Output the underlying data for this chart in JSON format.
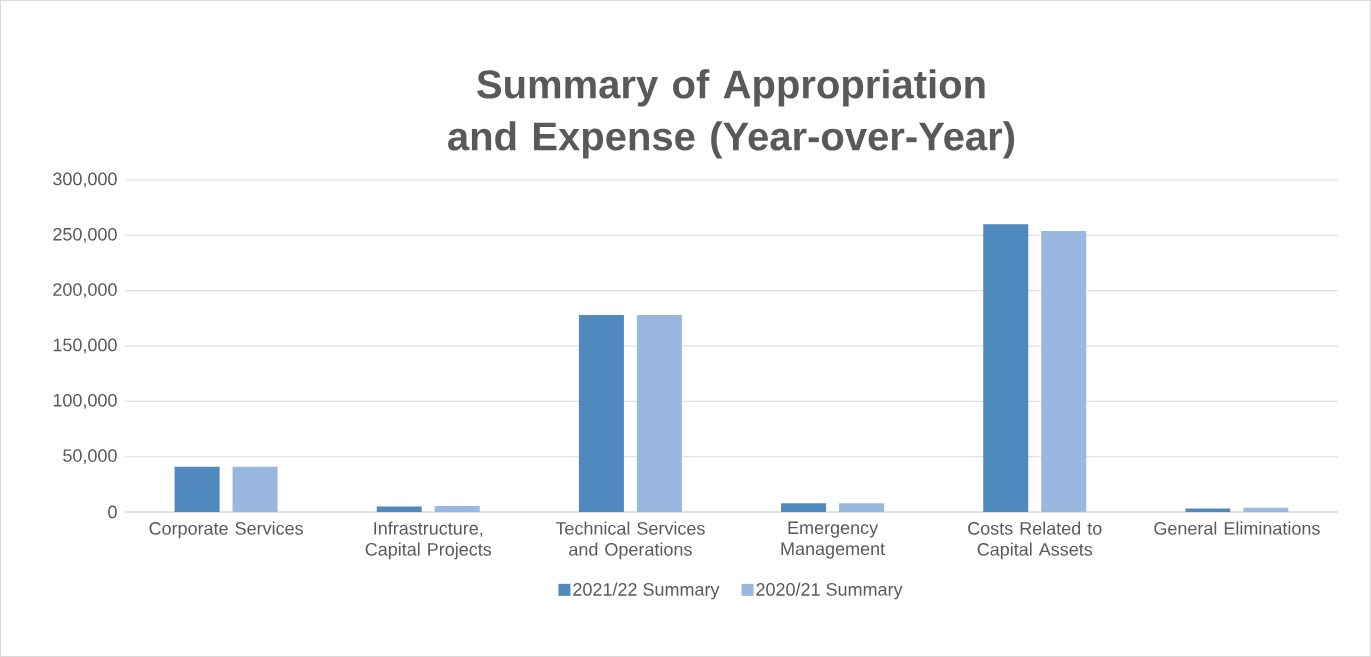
{
  "chart_data": {
    "type": "bar",
    "title": "Summary of Appropriation and Expense (Year-over-Year)",
    "categories": [
      "Corporate Services",
      "Infrastructure, Capital Projects",
      "Technical Services and Operations",
      "Emergency Management",
      "Costs Related to Capital Assets",
      "General Eliminations"
    ],
    "series": [
      {
        "name": "2021/22 Summary",
        "color": "#4f89bd",
        "values": [
          41000,
          5000,
          178000,
          8000,
          260000,
          3200
        ]
      },
      {
        "name": "2020/21 Summary",
        "color": "#98b8df",
        "values": [
          41000,
          5400,
          178000,
          8000,
          254000,
          3900
        ]
      }
    ],
    "ylim": [
      0,
      300000
    ],
    "yticks": [
      0,
      {
        "value": 50000,
        "label": "50,000"
      },
      {
        "value": 100000,
        "label": "100,000"
      },
      {
        "value": 150000,
        "label": "150,000"
      },
      {
        "value": 200000,
        "label": "200,000"
      },
      {
        "value": 250000,
        "label": "250,000"
      },
      {
        "value": 300000,
        "label": "300,000"
      }
    ],
    "grid": true,
    "legend": "bottom"
  }
}
